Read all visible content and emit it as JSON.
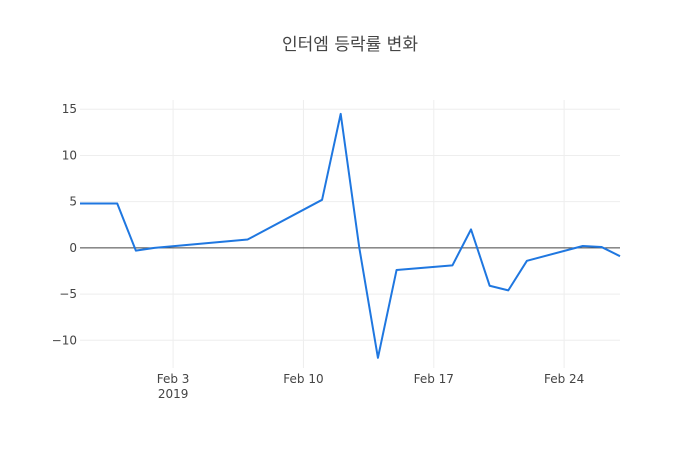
{
  "chart_data": {
    "type": "line",
    "title": "인터엠 등락률 변화",
    "xlabel": "",
    "ylabel": "",
    "x": [
      "2019-01-29",
      "2019-01-30",
      "2019-01-31",
      "2019-02-01",
      "2019-02-02",
      "2019-02-07",
      "2019-02-11",
      "2019-02-12",
      "2019-02-13",
      "2019-02-14",
      "2019-02-15",
      "2019-02-18",
      "2019-02-19",
      "2019-02-20",
      "2019-02-21",
      "2019-02-22",
      "2019-02-25",
      "2019-02-26",
      "2019-02-27"
    ],
    "series": [
      {
        "values": [
          4.8,
          4.8,
          4.8,
          -0.3,
          0.0,
          0.9,
          5.2,
          14.5,
          0.0,
          -11.9,
          -2.4,
          -1.9,
          2.0,
          -4.1,
          -4.6,
          -1.4,
          0.2,
          0.1,
          -0.9
        ],
        "color": "#1f77e0"
      }
    ],
    "xlim": [
      "2019-01-29",
      "2019-02-27"
    ],
    "ylim": [
      -13,
      16
    ],
    "x_ticks": [
      {
        "date": "2019-02-03",
        "label": "Feb 3",
        "sublabel": "2019"
      },
      {
        "date": "2019-02-10",
        "label": "Feb 10"
      },
      {
        "date": "2019-02-17",
        "label": "Feb 17"
      },
      {
        "date": "2019-02-24",
        "label": "Feb 24"
      }
    ],
    "y_ticks": [
      {
        "value": 15,
        "label": "15"
      },
      {
        "value": 10,
        "label": "10"
      },
      {
        "value": 5,
        "label": "5"
      },
      {
        "value": 0,
        "label": "0"
      },
      {
        "value": -5,
        "label": "−5"
      },
      {
        "value": -10,
        "label": "−10"
      }
    ],
    "grid": true,
    "zero_line": true,
    "legend": "none"
  }
}
